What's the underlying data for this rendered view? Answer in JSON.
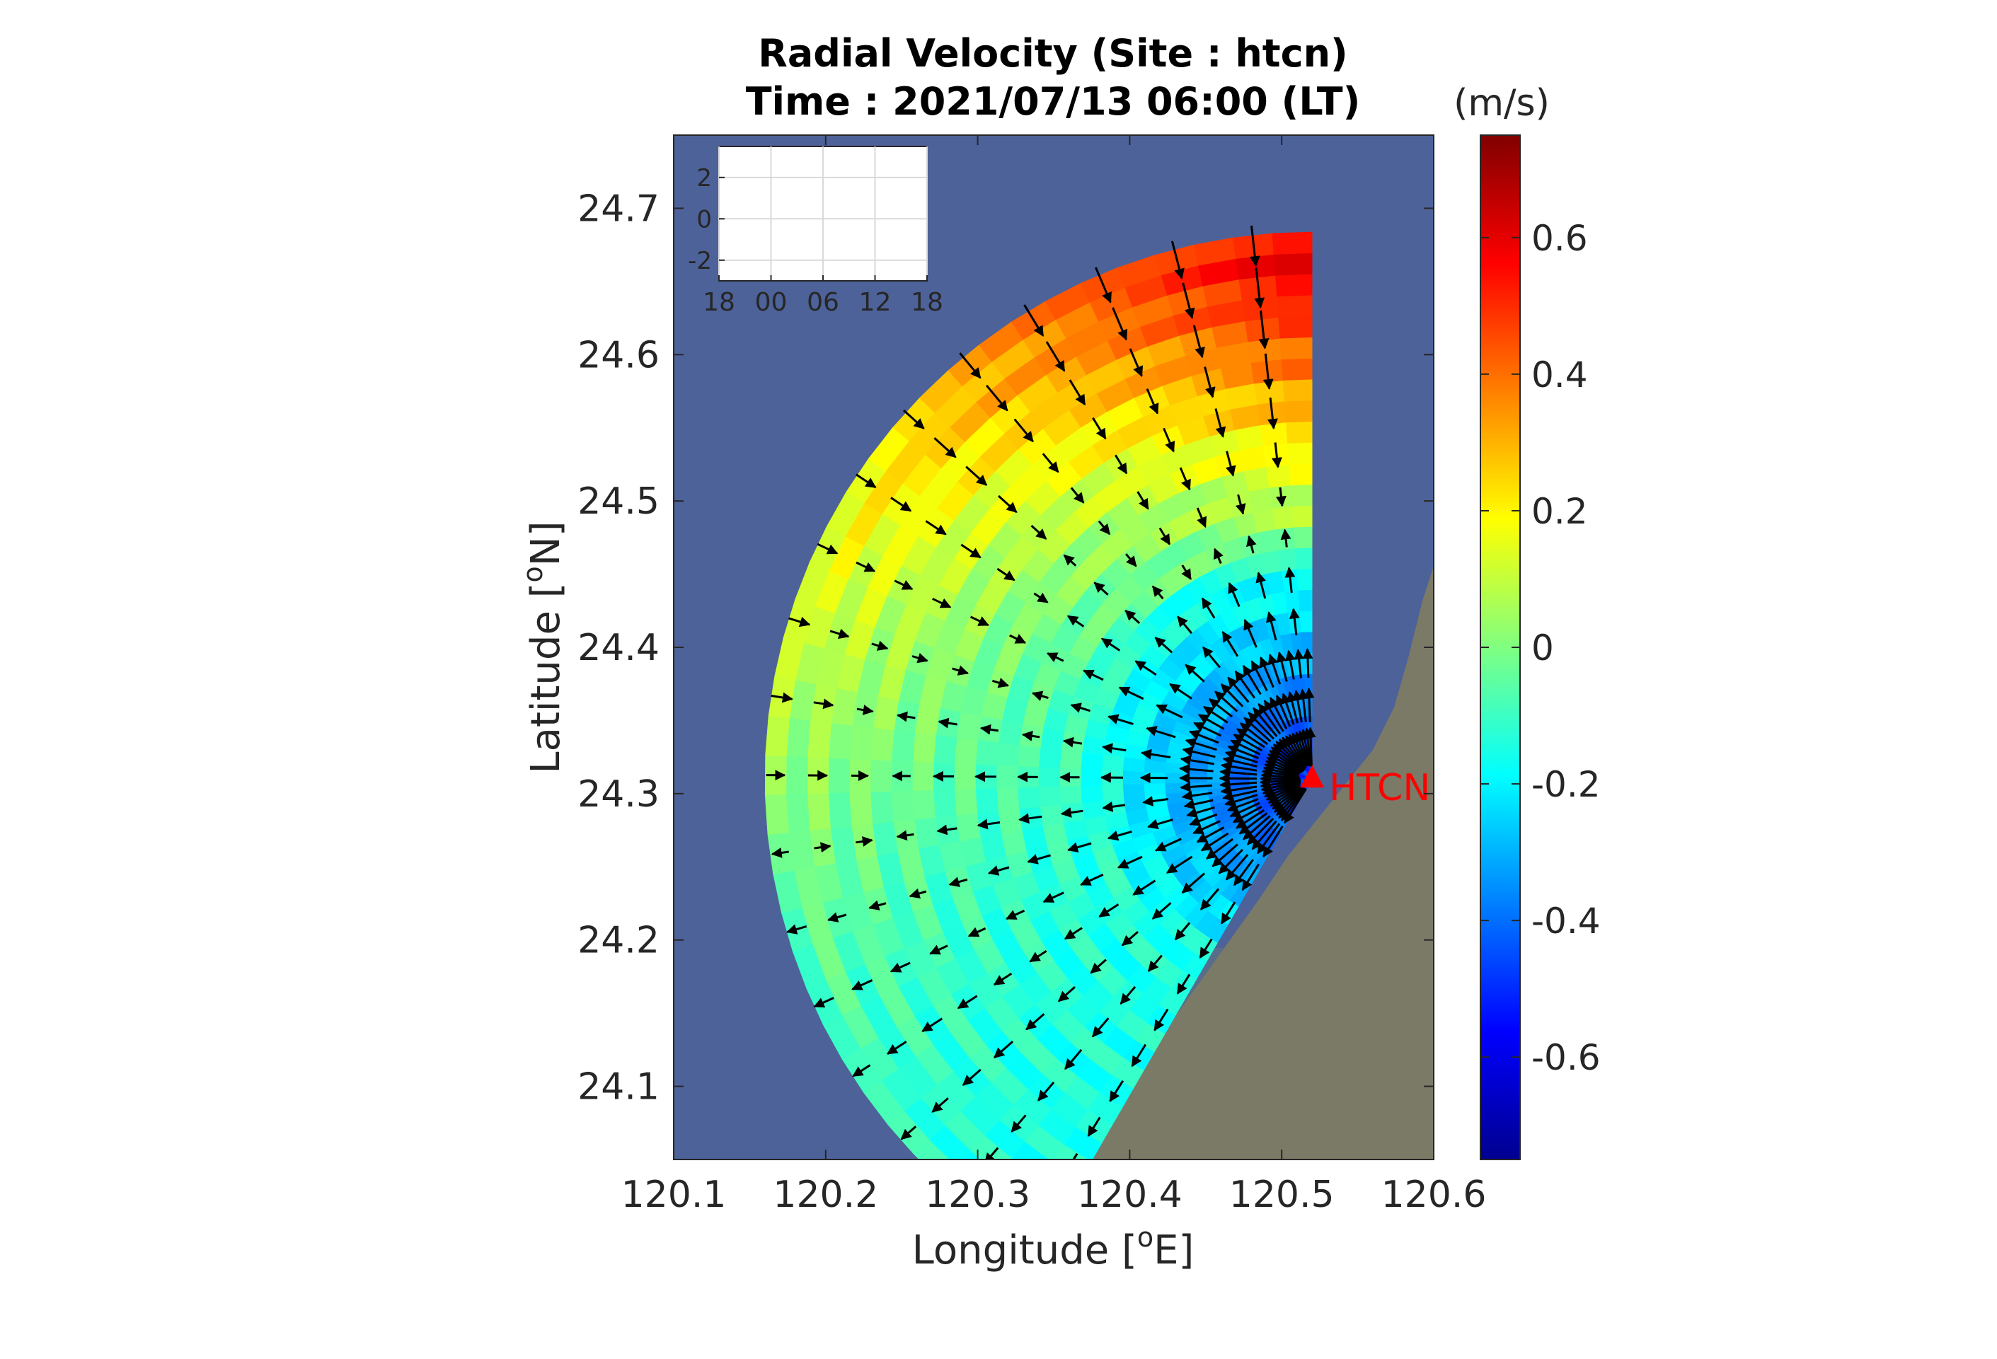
{
  "chart_data": {
    "type": "heatmap",
    "title": [
      "Radial Velocity (Site : htcn)",
      "Time : 2021/07/13 06:00 (LT)"
    ],
    "xlabel": "Longitude [",
    "xlabel_sup": "o",
    "xlabel_tail": "E]",
    "ylabel": "Latitude [",
    "ylabel_sup": "o",
    "ylabel_tail": "N]",
    "xlim": [
      120.1,
      120.6
    ],
    "ylim": [
      24.05,
      24.75
    ],
    "x_ticks": [
      "120.1",
      "120.2",
      "120.3",
      "120.4",
      "120.5",
      "120.6"
    ],
    "x_tick_values": [
      120.1,
      120.2,
      120.3,
      120.4,
      120.5,
      120.6
    ],
    "y_ticks": [
      "24.1",
      "24.2",
      "24.3",
      "24.4",
      "24.5",
      "24.6",
      "24.7"
    ],
    "y_tick_values": [
      24.1,
      24.2,
      24.3,
      24.4,
      24.5,
      24.6,
      24.7
    ],
    "colorbar": {
      "unit": "(m/s)",
      "range": [
        -0.75,
        0.75
      ],
      "ticks": [
        "0.6",
        "0.4",
        "0.2",
        "0",
        "-0.2",
        "-0.4",
        "-0.6"
      ],
      "tick_values": [
        0.6,
        0.4,
        0.2,
        0,
        -0.2,
        -0.4,
        -0.6
      ],
      "colormap": "jet"
    },
    "site": {
      "label": "HTCN",
      "lon": 120.52,
      "lat": 24.31,
      "color": "#ff0000"
    },
    "sector": {
      "center_lon": 120.52,
      "center_lat": 24.31,
      "max_range_deg": 0.36,
      "bearing_start_deg": 210,
      "bearing_end_deg": 360
    },
    "inset": {
      "x_ticks": [
        "18",
        "00",
        "06",
        "12",
        "18"
      ],
      "y_ticks": [
        "2",
        "0",
        "-2"
      ],
      "ylim": [
        -3,
        3.5
      ]
    },
    "colors": {
      "sea": "#4d6299",
      "land": "#7b7a66",
      "arrow": "#000000"
    }
  }
}
